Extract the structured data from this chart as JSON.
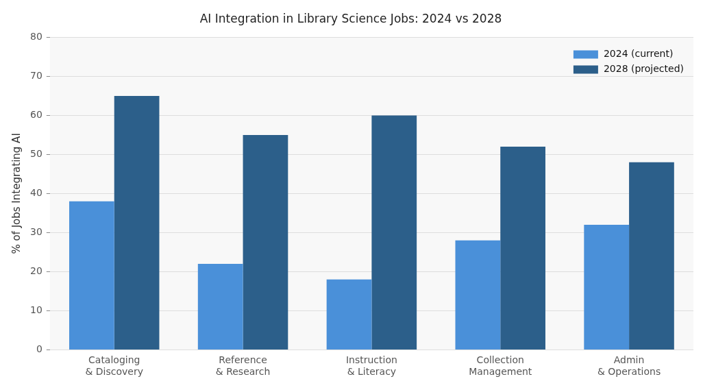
{
  "chart_data": {
    "type": "bar",
    "title": "AI Integration in Library Science Jobs: 2024 vs 2028",
    "ylabel": "% of Jobs Integrating AI",
    "categories": [
      "Cataloging\n& Discovery",
      "Reference\n& Research",
      "Instruction\n& Literacy",
      "Collection\nManagement",
      "Admin\n& Operations"
    ],
    "series": [
      {
        "name": "2024 (current)",
        "color": "#4a90d9",
        "values": [
          38,
          22,
          18,
          28,
          32
        ]
      },
      {
        "name": "2028 (projected)",
        "color": "#2c5f8a",
        "values": [
          65,
          55,
          60,
          52,
          48
        ]
      }
    ],
    "ylim": [
      0,
      80
    ],
    "yticks": [
      0,
      10,
      20,
      30,
      40,
      50,
      60,
      70,
      80
    ],
    "grid": "y",
    "legend": "top right"
  }
}
